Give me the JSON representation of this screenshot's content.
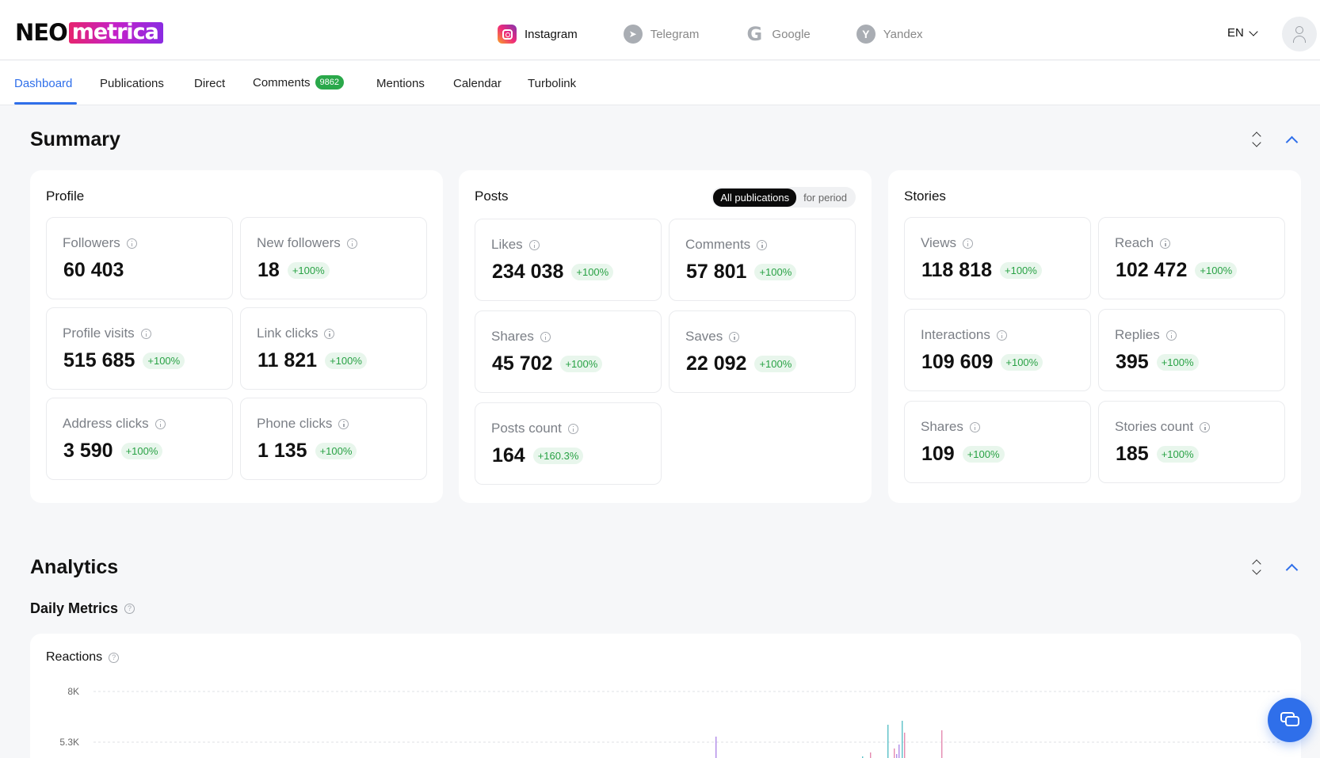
{
  "brand": {
    "neo": "NEO",
    "metrica": "metrica"
  },
  "platforms": [
    {
      "label": "Instagram",
      "icon": "instagram-icon",
      "active": true
    },
    {
      "label": "Telegram",
      "icon": "telegram-icon",
      "active": false
    },
    {
      "label": "Google",
      "icon": "google-icon",
      "active": false
    },
    {
      "label": "Yandex",
      "icon": "yandex-icon",
      "active": false
    }
  ],
  "language": "EN",
  "tabs": [
    {
      "label": "Dashboard",
      "active": true
    },
    {
      "label": "Publications"
    },
    {
      "label": "Direct"
    },
    {
      "label": "Comments",
      "badge": "9862"
    },
    {
      "label": "Mentions"
    },
    {
      "label": "Calendar"
    },
    {
      "label": "Turbolink"
    }
  ],
  "summary": {
    "title": "Summary",
    "profile": {
      "title": "Profile",
      "metrics": [
        {
          "label": "Followers",
          "value": "60 403",
          "delta": ""
        },
        {
          "label": "New followers",
          "value": "18",
          "delta": "+100%"
        },
        {
          "label": "Profile visits",
          "value": "515 685",
          "delta": "+100%"
        },
        {
          "label": "Link clicks",
          "value": "11 821",
          "delta": "+100%"
        },
        {
          "label": "Address clicks",
          "value": "3 590",
          "delta": "+100%"
        },
        {
          "label": "Phone clicks",
          "value": "1 135",
          "delta": "+100%"
        }
      ]
    },
    "posts": {
      "title": "Posts",
      "toggle": {
        "all": "All publications",
        "period": "for period"
      },
      "metrics": [
        {
          "label": "Likes",
          "value": "234 038",
          "delta": "+100%"
        },
        {
          "label": "Comments",
          "value": "57 801",
          "delta": "+100%"
        },
        {
          "label": "Shares",
          "value": "45 702",
          "delta": "+100%"
        },
        {
          "label": "Saves",
          "value": "22 092",
          "delta": "+100%"
        },
        {
          "label": "Posts count",
          "value": "164",
          "delta": "+160.3%"
        }
      ]
    },
    "stories": {
      "title": "Stories",
      "metrics": [
        {
          "label": "Views",
          "value": "118 818",
          "delta": "+100%"
        },
        {
          "label": "Reach",
          "value": "102 472",
          "delta": "+100%"
        },
        {
          "label": "Interactions",
          "value": "109 609",
          "delta": "+100%"
        },
        {
          "label": "Replies",
          "value": "395",
          "delta": "+100%"
        },
        {
          "label": "Shares",
          "value": "109",
          "delta": "+100%"
        },
        {
          "label": "Stories count",
          "value": "185",
          "delta": "+100%"
        }
      ]
    }
  },
  "analytics": {
    "title": "Analytics",
    "daily_title": "Daily Metrics",
    "reactions_title": "Reactions"
  },
  "chart_data": {
    "type": "bar",
    "title": "Reactions",
    "y_ticks": [
      "8K",
      "5.3K"
    ],
    "ylim": [
      0,
      8000
    ],
    "grid": true,
    "series_colors": [
      "#b08ae8",
      "#5ac0c7",
      "#e58ab0"
    ]
  }
}
